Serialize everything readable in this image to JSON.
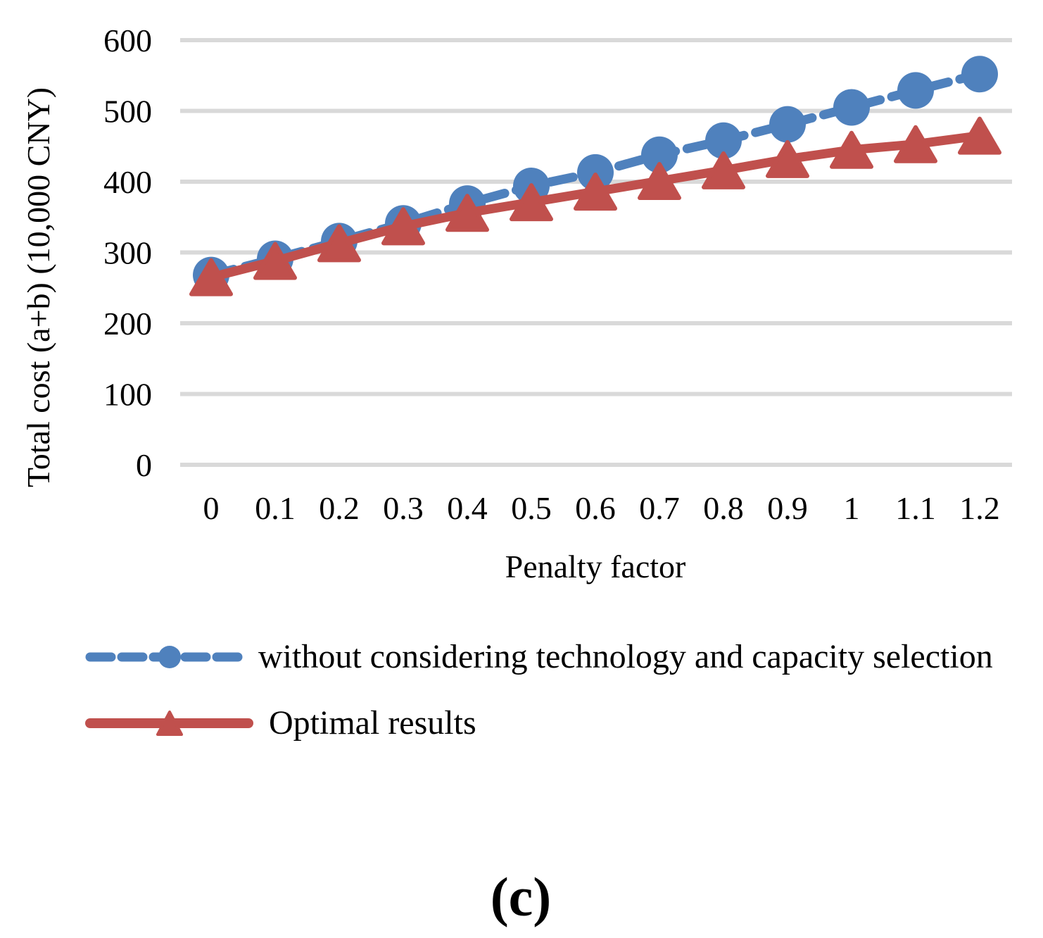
{
  "caption": "(c)",
  "colors": {
    "background": "#FFFFFF",
    "gridline": "#D9D9D9",
    "text": "#000000",
    "series_blue": "#4F81BD",
    "series_red": "#C0504D"
  },
  "chart_data": {
    "type": "line",
    "title": "",
    "xlabel": "Penalty factor",
    "ylabel": "Total cost (a+b) (10,000 CNY)",
    "x": [
      0,
      0.1,
      0.2,
      0.3,
      0.4,
      0.5,
      0.6,
      0.7,
      0.8,
      0.9,
      1,
      1.1,
      1.2
    ],
    "x_tick_labels": [
      "0",
      "0.1",
      "0.2",
      "0.3",
      "0.4",
      "0.5",
      "0.6",
      "0.7",
      "0.8",
      "0.9",
      "1",
      "1.1",
      "1.2"
    ],
    "y_ticks": [
      0,
      100,
      200,
      300,
      400,
      500,
      600
    ],
    "ylim": [
      0,
      600
    ],
    "grid": "horizontal-only",
    "legend_position": "below-chart-left",
    "series": [
      {
        "name": "without considering technology and capacity selection",
        "color": "#4F81BD",
        "line_style": "dashed",
        "marker": "circle",
        "values": [
          268,
          291,
          316,
          341,
          369,
          394,
          413,
          438,
          458,
          481,
          505,
          529,
          552
        ]
      },
      {
        "name": "Optimal results",
        "color": "#C0504D",
        "line_style": "solid",
        "marker": "triangle",
        "values": [
          265,
          288,
          313,
          337,
          356,
          371,
          386,
          401,
          416,
          432,
          445,
          453,
          465
        ]
      }
    ]
  }
}
